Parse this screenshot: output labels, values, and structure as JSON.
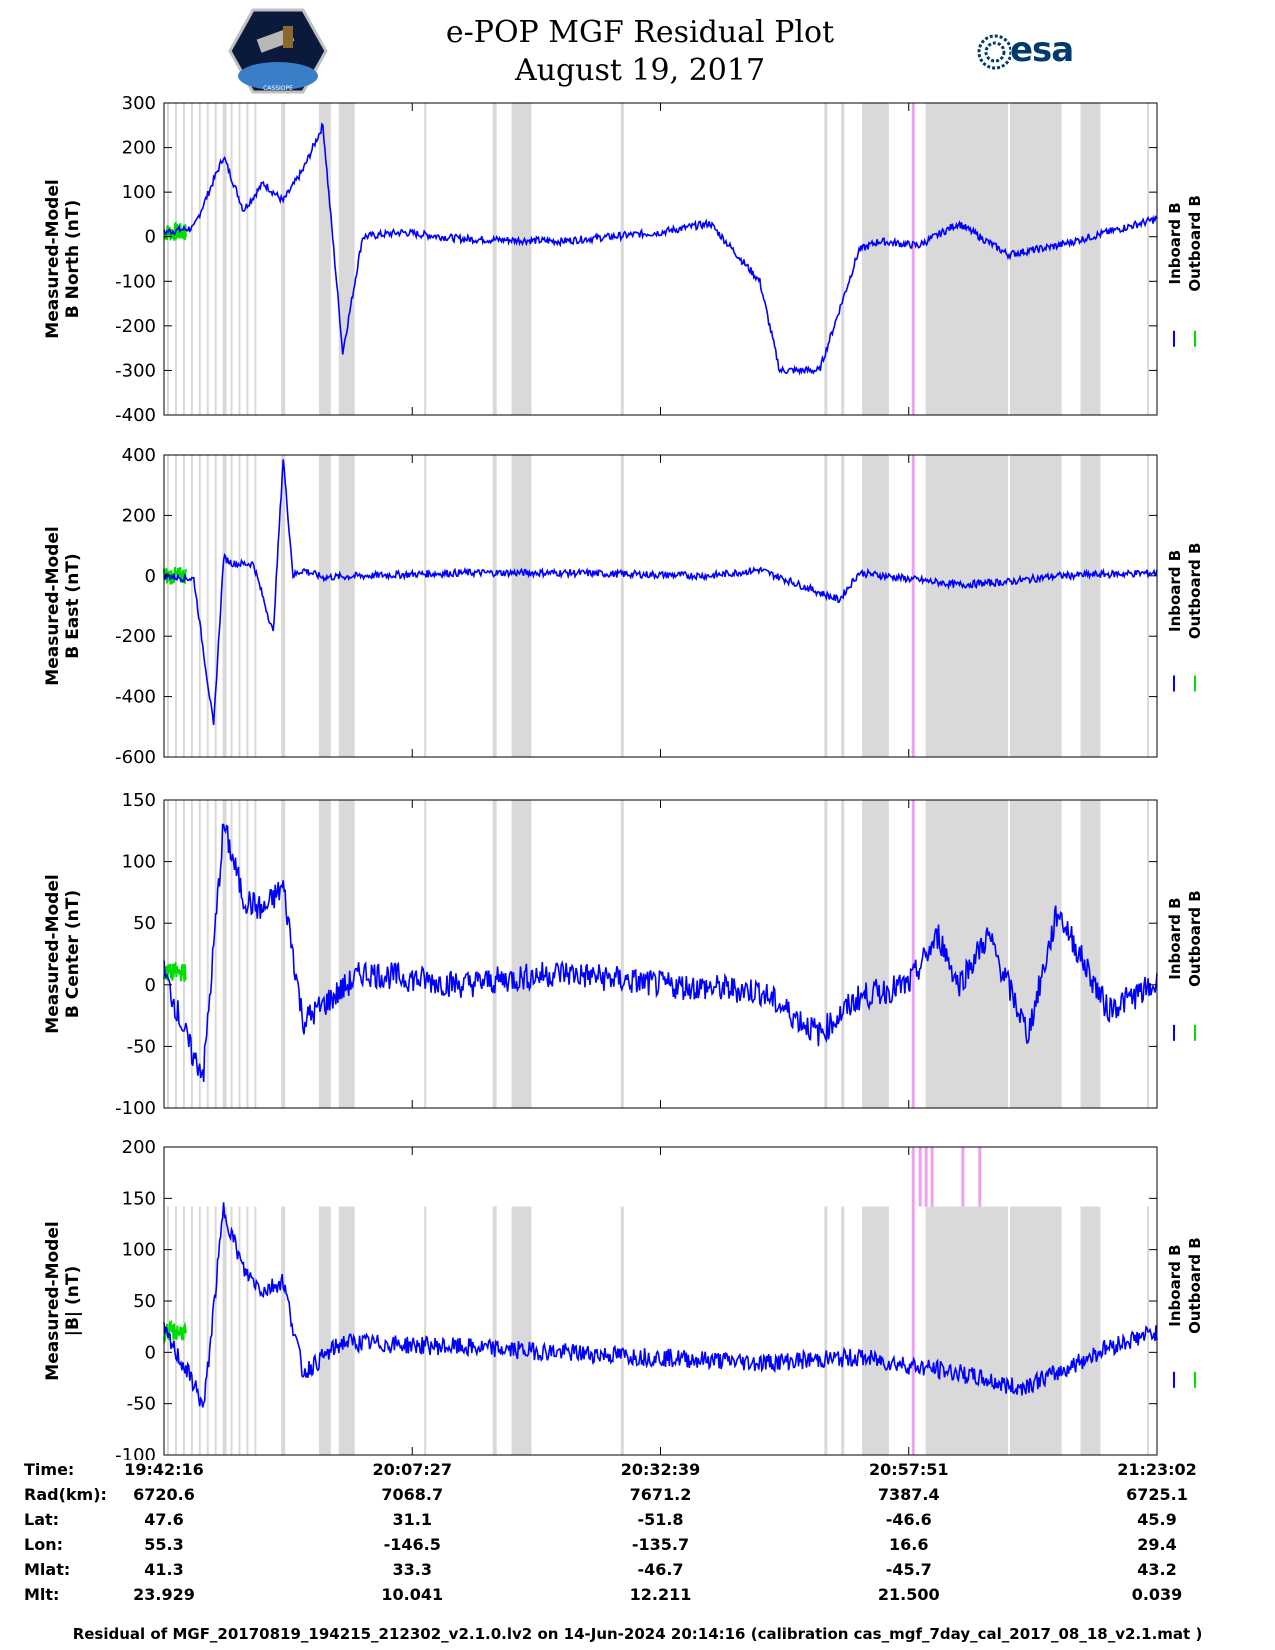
{
  "header": {
    "title": "e-POP MGF Residual Plot",
    "date": "August 19, 2017",
    "right_logo_text": "esa",
    "left_logo_text": "CASSIOPE"
  },
  "colors": {
    "inboard": "#0000ff",
    "outboard": "#00dd00",
    "gap": "#d9d9d9",
    "flag": "#f0a0f0"
  },
  "chart_data": [
    {
      "type": "line",
      "ylabel_line1": "Measured-Model",
      "ylabel_line2": "B North (nT)",
      "ylim": [
        -400,
        300
      ],
      "yticks": [
        300,
        200,
        100,
        0,
        -100,
        -200,
        -300,
        -400
      ],
      "legend": [
        "Inboard B",
        "Outboard B"
      ],
      "x_minutes": [
        0,
        3,
        6,
        8,
        10,
        12,
        14,
        16,
        18,
        20,
        24,
        30,
        40,
        50,
        55,
        60,
        62,
        66,
        70,
        72,
        76,
        80,
        85,
        90,
        95,
        100
      ],
      "inboard": [
        10,
        20,
        180,
        60,
        120,
        80,
        150,
        250,
        -260,
        0,
        10,
        -5,
        -10,
        10,
        30,
        -100,
        -300,
        -300,
        -30,
        -10,
        -20,
        30,
        -40,
        -20,
        10,
        40
      ]
    },
    {
      "type": "line",
      "ylabel_line1": "Measured-Model",
      "ylabel_line2": "B East (nT)",
      "ylim": [
        -600,
        400
      ],
      "yticks": [
        400,
        200,
        0,
        -200,
        -400,
        -600
      ],
      "legend": [
        "Inboard B",
        "Outboard B"
      ],
      "x_minutes": [
        0,
        3,
        5,
        6,
        7,
        9,
        11,
        12,
        13,
        14,
        16,
        20,
        30,
        40,
        55,
        60,
        68,
        70,
        75,
        80,
        85,
        90,
        100
      ],
      "inboard": [
        0,
        -10,
        -500,
        60,
        40,
        40,
        -190,
        390,
        0,
        20,
        -5,
        0,
        10,
        10,
        0,
        20,
        -80,
        10,
        -10,
        -30,
        -20,
        0,
        10
      ]
    },
    {
      "type": "line",
      "ylabel_line1": "Measured-Model",
      "ylabel_line2": "B Center (nT)",
      "ylim": [
        -100,
        150
      ],
      "yticks": [
        150,
        100,
        50,
        0,
        -50,
        -100
      ],
      "legend": [
        "Inboard B",
        "Outboard B"
      ],
      "x_minutes": [
        0,
        3,
        4,
        6,
        8,
        10,
        12,
        14,
        20,
        30,
        40,
        50,
        60,
        66,
        70,
        75,
        78,
        80,
        83,
        87,
        90,
        95,
        100
      ],
      "inboard": [
        10,
        -60,
        -70,
        130,
        70,
        60,
        80,
        -30,
        10,
        0,
        10,
        0,
        -5,
        -40,
        -10,
        0,
        40,
        0,
        40,
        -40,
        60,
        -20,
        0
      ]
    },
    {
      "type": "line",
      "ylabel_line1": "Measured-Model",
      "ylabel_line2": "|B| (nT)",
      "ylim": [
        -100,
        200
      ],
      "yticks": [
        200,
        150,
        100,
        50,
        0,
        -50,
        -100
      ],
      "legend": [
        "Inboard B",
        "Outboard B"
      ],
      "x_minutes": [
        0,
        3,
        4,
        6,
        8,
        10,
        12,
        14,
        18,
        30,
        40,
        50,
        60,
        70,
        80,
        86,
        90,
        95,
        100
      ],
      "inboard": [
        20,
        -30,
        -55,
        140,
        80,
        60,
        70,
        -20,
        10,
        5,
        0,
        -5,
        -10,
        -5,
        -20,
        -35,
        -20,
        5,
        20
      ]
    }
  ],
  "x_axis": {
    "time_labels": [
      "19:42:16",
      "20:07:27",
      "20:32:39",
      "20:57:51",
      "21:23:02"
    ]
  },
  "info_table": {
    "labels": [
      "Time:",
      "Rad(km):",
      "Lat:",
      "Lon:",
      "Mlat:",
      "Mlt:"
    ],
    "rows": [
      [
        "19:42:16",
        "20:07:27",
        "20:32:39",
        "20:57:51",
        "21:23:02"
      ],
      [
        "6720.6",
        "7068.7",
        "7671.2",
        "7387.4",
        "6725.1"
      ],
      [
        "47.6",
        "31.1",
        "-51.8",
        "-46.6",
        "45.9"
      ],
      [
        "55.3",
        "-146.5",
        "-135.7",
        "16.6",
        "29.4"
      ],
      [
        "41.3",
        "33.3",
        "-46.7",
        "-45.7",
        "43.2"
      ],
      [
        "23.929",
        "10.041",
        "12.211",
        "21.500",
        "0.039"
      ]
    ]
  },
  "footer": "Residual of MGF_20170819_194215_212302_v2.1.0.lv2 on 14-Jun-2024 20:14:16 (calibration cas_mgf_7day_cal_2017_08_18_v2.1.mat )"
}
